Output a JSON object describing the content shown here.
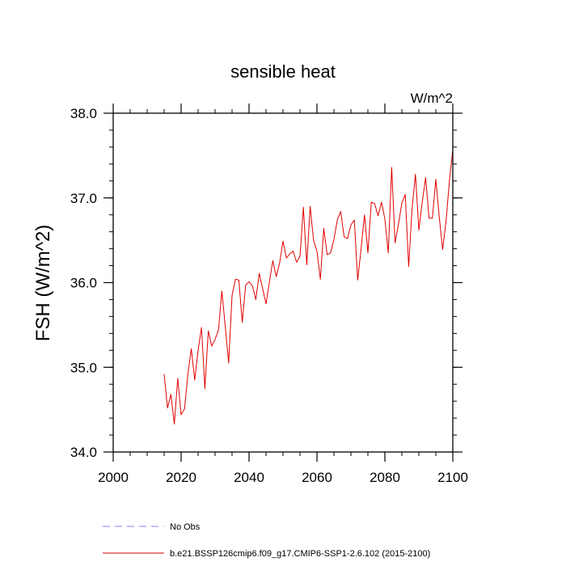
{
  "chart_data": {
    "type": "line",
    "title": "sensible heat",
    "units_label": "W/m^2",
    "xlabel": "",
    "ylabel": "FSH  (W/m^2)",
    "xlim": [
      2000,
      2100
    ],
    "ylim": [
      34.0,
      38.0
    ],
    "x_ticks": [
      2000,
      2020,
      2040,
      2060,
      2080,
      2100
    ],
    "x_tick_labels": [
      "2000",
      "2020",
      "2040",
      "2060",
      "2080",
      "2100"
    ],
    "y_ticks": [
      34.0,
      35.0,
      36.0,
      37.0,
      38.0
    ],
    "y_tick_labels": [
      "34.0",
      "35.0",
      "36.0",
      "37.0",
      "38.0"
    ],
    "grid": false,
    "legend_position": "bottom",
    "series": [
      {
        "name": "No Obs",
        "color": "#8080ff",
        "dash": "dashed",
        "x": [],
        "values": []
      },
      {
        "name": "b.e21.BSSP126cmip6.f09_g17.CMIP6-SSP1-2.6.102 (2015-2100)",
        "color": "#e00000",
        "dash": "solid",
        "x": [
          2015,
          2016,
          2017,
          2018,
          2019,
          2020,
          2021,
          2022,
          2023,
          2024,
          2025,
          2026,
          2027,
          2028,
          2029,
          2030,
          2031,
          2032,
          2033,
          2034,
          2035,
          2036,
          2037,
          2038,
          2039,
          2040,
          2041,
          2042,
          2043,
          2044,
          2045,
          2046,
          2047,
          2048,
          2049,
          2050,
          2051,
          2052,
          2053,
          2054,
          2055,
          2056,
          2057,
          2058,
          2059,
          2060,
          2061,
          2062,
          2063,
          2064,
          2065,
          2066,
          2067,
          2068,
          2069,
          2070,
          2071,
          2072,
          2073,
          2074,
          2075,
          2076,
          2077,
          2078,
          2079,
          2080,
          2081,
          2082,
          2083,
          2084,
          2085,
          2086,
          2087,
          2088,
          2089,
          2090,
          2091,
          2092,
          2093,
          2094,
          2095,
          2096,
          2097,
          2098,
          2099,
          2100
        ],
        "values": [
          34.92,
          34.52,
          34.68,
          34.33,
          34.87,
          34.44,
          34.51,
          34.92,
          35.22,
          34.85,
          35.2,
          35.47,
          34.75,
          35.43,
          35.25,
          35.33,
          35.44,
          35.9,
          35.48,
          35.05,
          35.85,
          36.04,
          36.03,
          35.53,
          35.97,
          36.01,
          35.96,
          35.8,
          36.11,
          35.93,
          35.75,
          36.01,
          36.26,
          36.07,
          36.23,
          36.49,
          36.29,
          36.34,
          36.37,
          36.24,
          36.31,
          36.89,
          36.21,
          36.9,
          36.5,
          36.37,
          36.04,
          36.64,
          36.33,
          36.35,
          36.51,
          36.74,
          36.84,
          36.54,
          36.52,
          36.68,
          36.74,
          36.03,
          36.4,
          36.8,
          36.35,
          36.95,
          36.93,
          36.79,
          36.95,
          36.75,
          36.35,
          37.36,
          36.47,
          36.69,
          36.94,
          37.04,
          36.19,
          36.87,
          37.28,
          36.62,
          36.95,
          37.24,
          36.76,
          36.76,
          37.22,
          36.78,
          36.39,
          36.72,
          37.2,
          37.57
        ]
      }
    ]
  }
}
